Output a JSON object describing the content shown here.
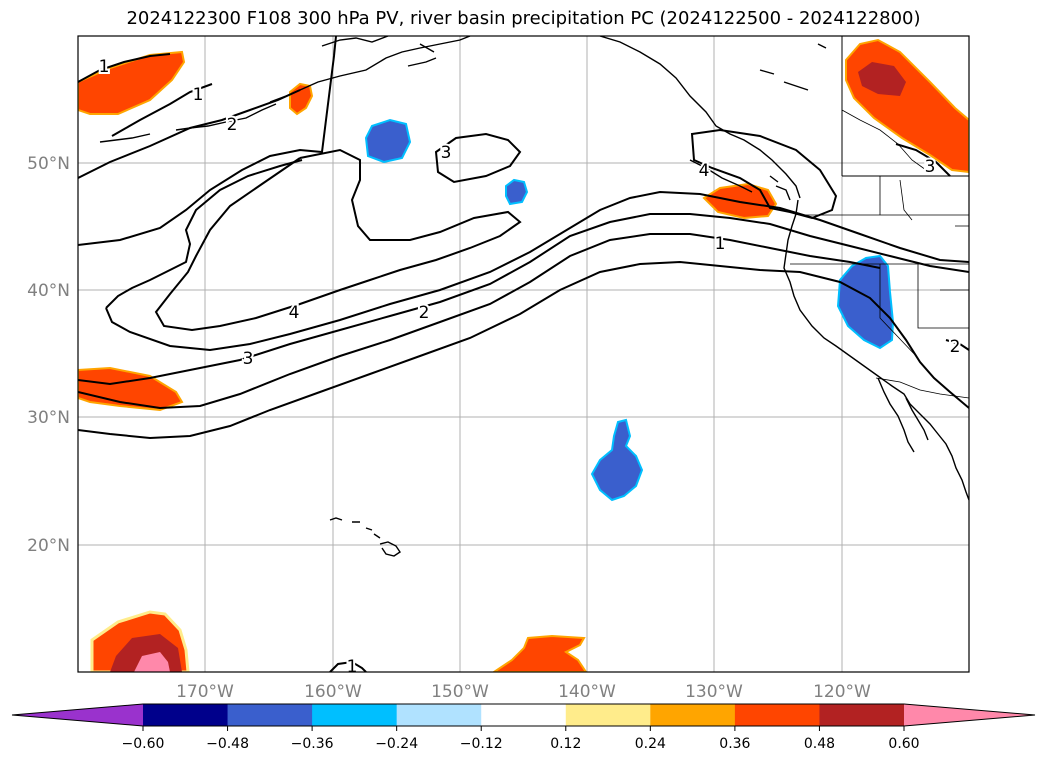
{
  "title": "2024122300 F108 300 hPa PV, river basin precipitation PC (2024122500 - 2024122800)",
  "map": {
    "projection": "plate carree",
    "lon_range": [
      -180,
      -110
    ],
    "lat_range": [
      10,
      60
    ],
    "gridlines": true,
    "lat_labels": [
      "50°N",
      "40°N",
      "30°N",
      "20°N"
    ],
    "lon_labels": [
      "170°W",
      "160°W",
      "150°W",
      "140°W",
      "130°W",
      "120°W"
    ],
    "features": [
      "coastlines",
      "country borders",
      "US state borders",
      "inset box (upper right)"
    ]
  },
  "contours": {
    "field": "300 hPa PV",
    "color": "#000000",
    "labels": [
      "1",
      "1",
      "2",
      "3",
      "4",
      "2",
      "3",
      "4",
      "1",
      "2",
      "3",
      "1"
    ]
  },
  "colorbar": {
    "orientation": "horizontal",
    "extend": "both",
    "ticks": [
      "−0.60",
      "−0.48",
      "−0.36",
      "−0.24",
      "−0.12",
      "0.12",
      "0.24",
      "0.36",
      "0.48",
      "0.60"
    ],
    "colors": [
      "#9a32cd",
      "#00008b",
      "#3a5fcd",
      "#00bfff",
      "#b0e2ff",
      "#ffffff",
      "#ffec8b",
      "#ffa500",
      "#ff4500",
      "#b22222",
      "#ff88aa",
      "#ff88aa"
    ],
    "under_color": "#9a32cd",
    "over_color": "#ff88aa"
  }
}
